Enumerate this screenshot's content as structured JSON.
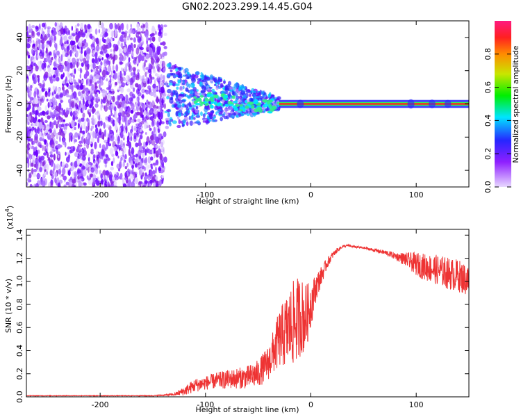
{
  "figure": {
    "title": "GN02.2023.299.14.45.G04"
  },
  "chart_data": [
    {
      "type": "heatmap",
      "xlabel": "Height of straight line (km)",
      "ylabel": "Frequency (Hz)",
      "xlim": [
        -270,
        150
      ],
      "ylim": [
        -50,
        50
      ],
      "x_ticks": [
        -200,
        -100,
        0,
        100
      ],
      "x_tick_labels": [
        "-200",
        "-100",
        "0",
        "100"
      ],
      "y_ticks": [
        -40,
        -20,
        0,
        20,
        40
      ],
      "y_tick_labels": [
        "-40",
        "-20",
        "0",
        "20",
        "40"
      ],
      "colorbar": {
        "label": "Normalized spectral amplitude",
        "range": [
          0,
          1
        ],
        "ticks": [
          0.0,
          0.2,
          0.4,
          0.6,
          0.8
        ],
        "tick_labels": [
          "0.0",
          "0.2",
          "0.4",
          "0.6",
          "0.8"
        ],
        "colors": [
          "#e0ccff",
          "#8f1fff",
          "#2626ff",
          "#00e5ff",
          "#00ee00",
          "#c8e600",
          "#ff8c00",
          "#ff2020",
          "#ff1a80"
        ]
      },
      "regions": [
        {
          "x_range": [
            -270,
            -138
          ],
          "f_range": [
            -50,
            48
          ],
          "amplitude": 0.05,
          "description_color": "#9b4dff"
        },
        {
          "x_range": [
            -138,
            -30
          ],
          "f_range": [
            -22,
            18
          ],
          "amplitude": 0.3,
          "description_color": "#2626ff"
        },
        {
          "x_range": [
            -30,
            150
          ],
          "f_range": [
            -3,
            3
          ],
          "amplitude": 0.85,
          "description_color": "#ff2020"
        }
      ]
    },
    {
      "type": "line",
      "xlabel": "Height of straight line (km)",
      "ylabel": "SNR (10 * v/v)",
      "y_multiplier": "(x10",
      "y_multiplier_exp": "4",
      "y_multiplier_close": ")",
      "xlim": [
        -270,
        150
      ],
      "ylim": [
        0,
        1.45
      ],
      "x_ticks": [
        -200,
        -100,
        0,
        100
      ],
      "x_tick_labels": [
        "-200",
        "-100",
        "0",
        "100"
      ],
      "y_ticks": [
        0.0,
        0.2,
        0.4,
        0.6,
        0.8,
        1.0,
        1.2,
        1.4
      ],
      "y_tick_labels": [
        "0.0",
        "0.2",
        "0.4",
        "0.6",
        "0.8",
        "1.0",
        "1.2",
        "1.4"
      ],
      "color": "#ee3333",
      "series": [
        {
          "x": [
            -270,
            -250,
            -230,
            -210,
            -190,
            -170,
            -150,
            -130,
            -120,
            -110,
            -100,
            -90,
            -80,
            -70,
            -60,
            -50,
            -40,
            -35,
            -30,
            -25,
            -20,
            -15,
            -10,
            -5,
            0,
            5,
            10,
            15,
            20,
            25,
            30,
            35,
            40,
            50,
            60,
            70,
            80,
            90,
            100,
            110,
            120,
            130,
            140,
            150
          ],
          "y": [
            0.01,
            0.01,
            0.01,
            0.01,
            0.01,
            0.01,
            0.01,
            0.02,
            0.05,
            0.1,
            0.12,
            0.14,
            0.15,
            0.16,
            0.17,
            0.2,
            0.3,
            0.4,
            0.5,
            0.55,
            0.6,
            0.65,
            0.7,
            0.68,
            0.8,
            0.95,
            1.05,
            1.15,
            1.22,
            1.27,
            1.3,
            1.31,
            1.3,
            1.29,
            1.27,
            1.25,
            1.22,
            1.19,
            1.15,
            1.12,
            1.1,
            1.07,
            1.05,
            1.0
          ],
          "noise": [
            0.003,
            0.003,
            0.003,
            0.003,
            0.003,
            0.003,
            0.004,
            0.01,
            0.04,
            0.06,
            0.06,
            0.07,
            0.08,
            0.09,
            0.1,
            0.12,
            0.15,
            0.2,
            0.25,
            0.3,
            0.35,
            0.38,
            0.35,
            0.3,
            0.2,
            0.12,
            0.08,
            0.05,
            0.03,
            0.02,
            0.01,
            0.01,
            0.01,
            0.01,
            0.015,
            0.02,
            0.03,
            0.06,
            0.1,
            0.12,
            0.13,
            0.14,
            0.14,
            0.14
          ]
        }
      ]
    }
  ]
}
